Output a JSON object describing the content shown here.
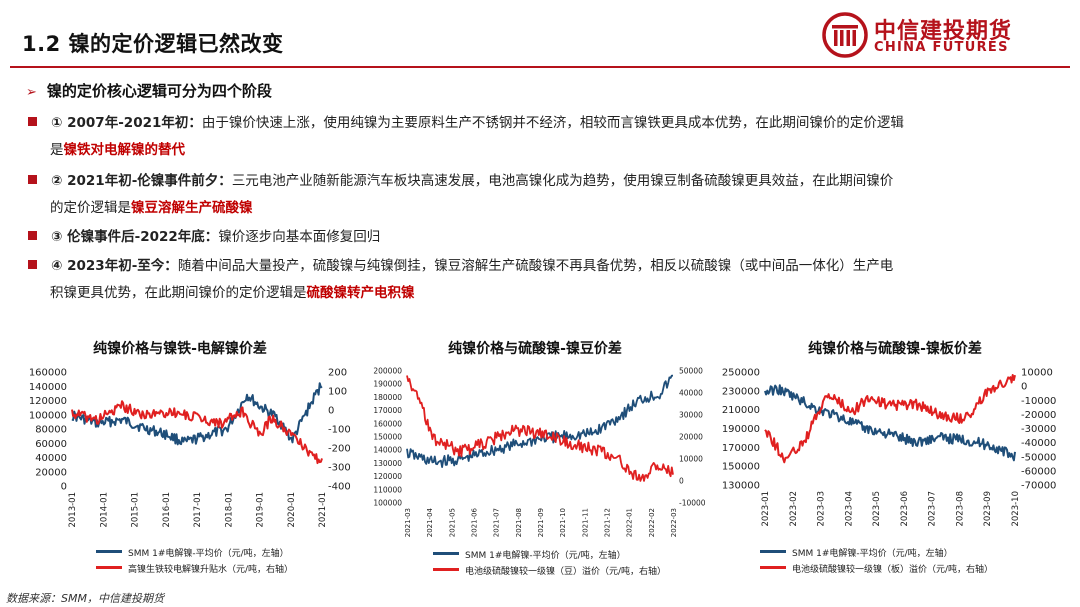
{
  "header": {
    "title": "1.2 镍的定价逻辑已然改变",
    "brand_cn": "中信建投期货",
    "brand_en": "CHINA FUTURES"
  },
  "subheading": "镍的定价核心逻辑可分为四个阶段",
  "bullets": [
    {
      "lead": "① 2007年-2021年初：",
      "text": "由于镍价快速上涨，使用纯镍为主要原料生产不锈钢并不经济，相较而言镍铁更具成本优势，在此期间镍价的定价逻辑",
      "text2": "是",
      "highlight": "镍铁对电解镍的替代"
    },
    {
      "lead": "② 2021年初-伦镍事件前夕：",
      "text": "三元电池产业随新能源汽车板块高速发展，电池高镍化成为趋势，使用镍豆制备硫酸镍更具效益，在此期间镍价",
      "text2": "的定价逻辑是",
      "highlight": "镍豆溶解生产硫酸镍"
    },
    {
      "lead": "③ 伦镍事件后-2022年底：",
      "text": "镍价逐步向基本面修复回归"
    },
    {
      "lead": "④ 2023年初-至今：",
      "text": "随着中间品大量投产，硫酸镍与纯镍倒挂，镍豆溶解生产硫酸镍不再具备优势，相反以硫酸镍（或中间品一体化）生产电",
      "text2": "积镍更具优势，在此期间镍价的定价逻辑是",
      "highlight": "硫酸镍转产电积镍"
    }
  ],
  "colors": {
    "blue": "#1f4e79",
    "red": "#e02020",
    "brand": "#b5121b"
  },
  "charts": [
    {
      "title": "纯镍价格与镍铁-电解镍价差",
      "left_ticks": [
        "160000",
        "140000",
        "120000",
        "100000",
        "80000",
        "60000",
        "40000",
        "20000",
        "0"
      ],
      "right_ticks": [
        "200",
        "100",
        "0",
        "-100",
        "-200",
        "-300",
        "-400"
      ],
      "x_ticks": [
        "2013-01",
        "2014-01",
        "2015-01",
        "2016-01",
        "2017-01",
        "2018-01",
        "2019-01",
        "2020-01",
        "2021-01"
      ],
      "legend": [
        "SMM 1#电解镍-平均价（元/吨，左轴）",
        "高镍生铁较电解镍升贴水（元/吨，右轴）"
      ]
    },
    {
      "title": "纯镍价格与硫酸镍-镍豆价差",
      "left_ticks": [
        "200000",
        "190000",
        "180000",
        "170000",
        "160000",
        "150000",
        "140000",
        "130000",
        "120000",
        "110000",
        "100000"
      ],
      "right_ticks": [
        "50000",
        "40000",
        "30000",
        "20000",
        "10000",
        "0",
        "-10000"
      ],
      "x_ticks": [
        "2021-03",
        "2021-04",
        "2021-05",
        "2021-06",
        "2021-07",
        "2021-08",
        "2021-09",
        "2021-10",
        "2021-11",
        "2021-12",
        "2022-01",
        "2022-02",
        "2022-03"
      ],
      "legend": [
        "SMM 1#电解镍-平均价（元/吨，左轴）",
        "电池级硫酸镍较一级镍（豆）溢价（元/吨，右轴）"
      ]
    },
    {
      "title": "纯镍价格与硫酸镍-镍板价差",
      "left_ticks": [
        "250000",
        "230000",
        "210000",
        "190000",
        "170000",
        "150000",
        "130000"
      ],
      "right_ticks": [
        "10000",
        "0",
        "-10000",
        "-20000",
        "-30000",
        "-40000",
        "-50000",
        "-60000",
        "-70000"
      ],
      "x_ticks": [
        "2023-01",
        "2023-02",
        "2023-03",
        "2023-04",
        "2023-05",
        "2023-06",
        "2023-07",
        "2023-08",
        "2023-09",
        "2023-10"
      ],
      "legend": [
        "SMM 1#电解镍-平均价（元/吨，左轴）",
        "电池级硫酸镍较一级镍（板）溢价（元/吨，右轴）"
      ]
    }
  ],
  "footer": "数据来源：SMM，中信建投期货"
}
